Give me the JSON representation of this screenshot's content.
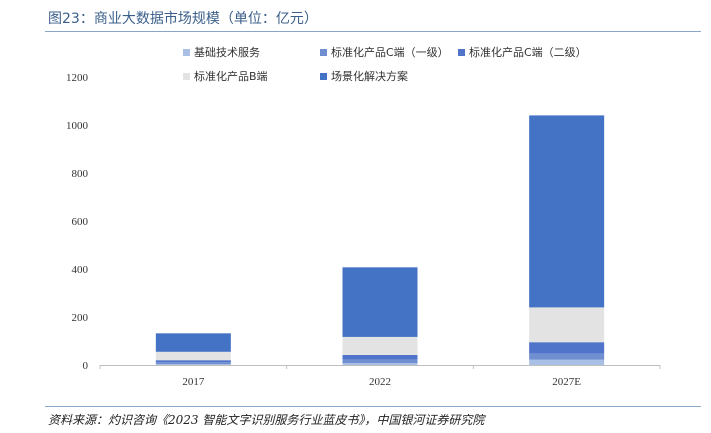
{
  "title": "图23：商业大数据市场规模（单位：亿元）",
  "source": "资料来源：灼识咨询《2023 智能文字识别服务行业蓝皮书》，中国银河证券研究院",
  "chart_data": {
    "type": "bar",
    "stacked": true,
    "categories": [
      "2017",
      "2022",
      "2027E"
    ],
    "ylim": [
      0,
      1200
    ],
    "yticks": [
      0,
      200,
      400,
      600,
      800,
      1000,
      1200
    ],
    "legend_position": "top",
    "grid": false,
    "series": [
      {
        "name": "基础技术服务",
        "color": "#a9bfe6",
        "values": [
          4,
          8,
          22
        ]
      },
      {
        "name": "标准化产品C端（一级）",
        "color": "#6f8fd0",
        "values": [
          8,
          14,
          25
        ]
      },
      {
        "name": "标准化产品C端（二级）",
        "color": "#4f74c9",
        "values": [
          8,
          20,
          48
        ]
      },
      {
        "name": "标准化产品B端",
        "color": "#e3e3e3",
        "values": [
          35,
          75,
          145
        ]
      },
      {
        "name": "场景化解决方案",
        "color": "#4472c4",
        "values": [
          77,
          290,
          800
        ]
      }
    ]
  }
}
